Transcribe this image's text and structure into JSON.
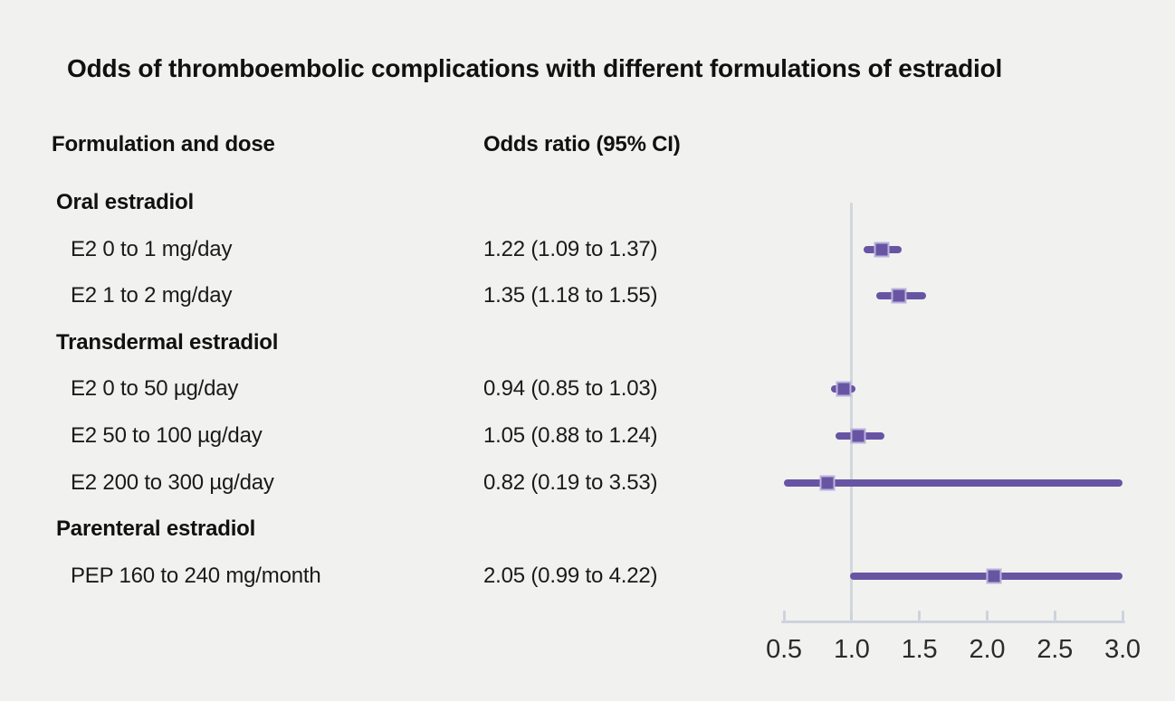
{
  "figure": {
    "title": "Odds of thromboembolic complications with different formulations of estradiol"
  },
  "columns": {
    "formulation": "Formulation and dose",
    "odds_ratio": "Odds ratio (95% CI)"
  },
  "chart_data": {
    "type": "forest",
    "title": "Odds of thromboembolic complications with different formulations of estradiol",
    "xlabel": "",
    "xlim": [
      0.5,
      3.0
    ],
    "reference_line": 1.0,
    "grid": false,
    "legend": "none",
    "x_ticks": [
      {
        "value": 0.5,
        "label": "0.5"
      },
      {
        "value": 1.0,
        "label": "1.0"
      },
      {
        "value": 1.5,
        "label": "1.5"
      },
      {
        "value": 2.0,
        "label": "2.0"
      },
      {
        "value": 2.5,
        "label": "2.5"
      },
      {
        "value": 3.0,
        "label": "3.0"
      }
    ],
    "rows": [
      {
        "kind": "group",
        "label": "Oral estradiol"
      },
      {
        "kind": "item",
        "label": "E2 0 to 1 mg/day",
        "value_text": "1.22 (1.09 to 1.37)",
        "or": 1.22,
        "ci_low": 1.09,
        "ci_high": 1.37
      },
      {
        "kind": "item",
        "label": "E2 1 to 2 mg/day",
        "value_text": "1.35 (1.18 to 1.55)",
        "or": 1.35,
        "ci_low": 1.18,
        "ci_high": 1.55
      },
      {
        "kind": "group",
        "label": "Transdermal estradiol"
      },
      {
        "kind": "item",
        "label": "E2 0 to 50 µg/day",
        "value_text": "0.94 (0.85 to 1.03)",
        "or": 0.94,
        "ci_low": 0.85,
        "ci_high": 1.03
      },
      {
        "kind": "item",
        "label": "E2 50 to 100 µg/day",
        "value_text": "1.05 (0.88 to 1.24)",
        "or": 1.05,
        "ci_low": 0.88,
        "ci_high": 1.24
      },
      {
        "kind": "item",
        "label": "E2 200 to 300 µg/day",
        "value_text": "0.82 (0.19 to 3.53)",
        "or": 0.82,
        "ci_low": 0.19,
        "ci_high": 3.53
      },
      {
        "kind": "group",
        "label": "Parenteral estradiol"
      },
      {
        "kind": "item",
        "label": "PEP 160 to 240 mg/month",
        "value_text": "2.05 (0.99 to 4.22)",
        "or": 2.05,
        "ci_low": 0.99,
        "ci_high": 4.22
      }
    ],
    "colors": {
      "marker_fill": "#6755a4",
      "marker_border": "#bdb2dc",
      "ci_line": "#6755a4",
      "axis": "#cdd2dc",
      "reference_line": "#d2d7de",
      "background": "#f1f1ef",
      "text": "#1a1a1a"
    }
  }
}
